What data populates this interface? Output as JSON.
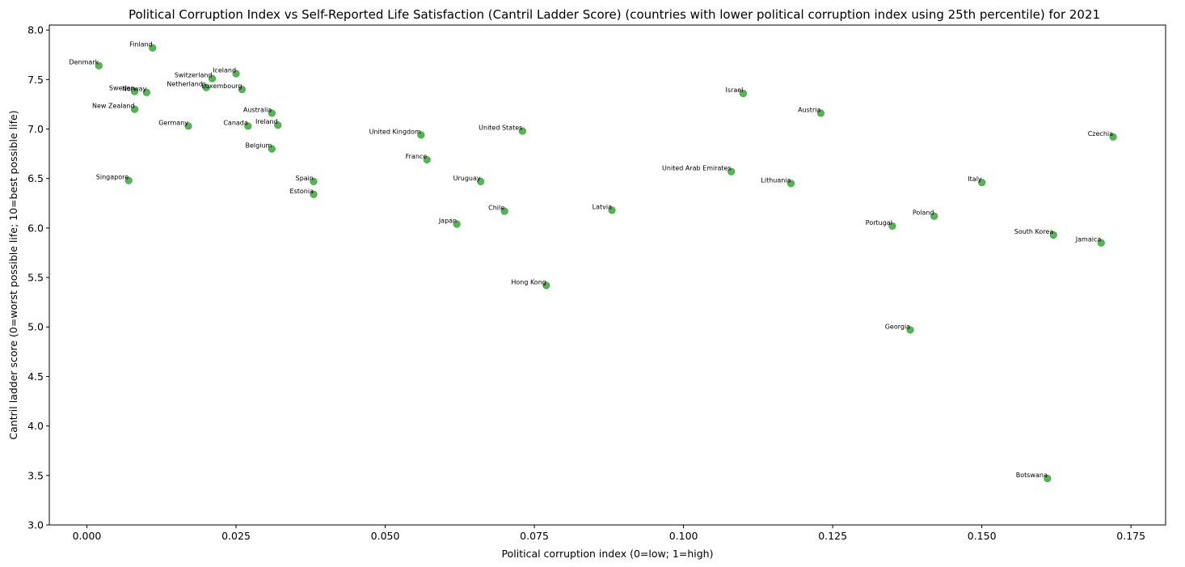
{
  "chart_data": {
    "type": "scatter",
    "title": "Political Corruption Index vs Self-Reported Life Satisfaction (Cantril Ladder Score) (countries with lower political corruption index using 25th percentile) for 2021",
    "xlabel": "Political corruption index (0=low; 1=high)",
    "ylabel": "Cantril ladder score (0=worst possible life; 10=best possible life)",
    "xlim": [
      -0.0063,
      0.1808
    ],
    "ylim": [
      3.0,
      8.05
    ],
    "xticks": [
      0.0,
      0.025,
      0.05,
      0.075,
      0.1,
      0.125,
      0.15,
      0.175
    ],
    "xtick_labels": [
      "0.000",
      "0.025",
      "0.050",
      "0.075",
      "0.100",
      "0.125",
      "0.150",
      "0.175"
    ],
    "yticks": [
      3.0,
      3.5,
      4.0,
      4.5,
      5.0,
      5.5,
      6.0,
      6.5,
      7.0,
      7.5,
      8.0
    ],
    "ytick_labels": [
      "3.0",
      "3.5",
      "4.0",
      "4.5",
      "5.0",
      "5.5",
      "6.0",
      "6.5",
      "7.0",
      "7.5",
      "8.0"
    ],
    "grid": false,
    "marker_color": "#2ca02c",
    "points": [
      {
        "label": "Denmark",
        "x": 0.002,
        "y": 7.64
      },
      {
        "label": "Finland",
        "x": 0.011,
        "y": 7.82
      },
      {
        "label": "Iceland",
        "x": 0.025,
        "y": 7.56
      },
      {
        "label": "Switzerland",
        "x": 0.021,
        "y": 7.51
      },
      {
        "label": "Netherlands",
        "x": 0.02,
        "y": 7.42
      },
      {
        "label": "Luxembourg",
        "x": 0.026,
        "y": 7.4
      },
      {
        "label": "Sweden",
        "x": 0.008,
        "y": 7.38
      },
      {
        "label": "Norway",
        "x": 0.01,
        "y": 7.37
      },
      {
        "label": "New Zealand",
        "x": 0.008,
        "y": 7.2
      },
      {
        "label": "Australia",
        "x": 0.031,
        "y": 7.16
      },
      {
        "label": "Germany",
        "x": 0.017,
        "y": 7.03
      },
      {
        "label": "Canada",
        "x": 0.027,
        "y": 7.03
      },
      {
        "label": "Ireland",
        "x": 0.032,
        "y": 7.04
      },
      {
        "label": "Belgium",
        "x": 0.031,
        "y": 6.8
      },
      {
        "label": "United Kingdom",
        "x": 0.056,
        "y": 6.94
      },
      {
        "label": "United States",
        "x": 0.073,
        "y": 6.98
      },
      {
        "label": "Singapore",
        "x": 0.007,
        "y": 6.48
      },
      {
        "label": "Spain",
        "x": 0.038,
        "y": 6.47
      },
      {
        "label": "Estonia",
        "x": 0.038,
        "y": 6.34
      },
      {
        "label": "France",
        "x": 0.057,
        "y": 6.69
      },
      {
        "label": "Uruguay",
        "x": 0.066,
        "y": 6.47
      },
      {
        "label": "Chile",
        "x": 0.07,
        "y": 6.17
      },
      {
        "label": "Japan",
        "x": 0.062,
        "y": 6.04
      },
      {
        "label": "Latvia",
        "x": 0.088,
        "y": 6.18
      },
      {
        "label": "Hong Kong",
        "x": 0.077,
        "y": 5.42
      },
      {
        "label": "Israel",
        "x": 0.11,
        "y": 7.36
      },
      {
        "label": "Austria",
        "x": 0.123,
        "y": 7.16
      },
      {
        "label": "United Arab Emirates",
        "x": 0.108,
        "y": 6.57
      },
      {
        "label": "Lithuania",
        "x": 0.118,
        "y": 6.45
      },
      {
        "label": "Portugal",
        "x": 0.135,
        "y": 6.02
      },
      {
        "label": "Poland",
        "x": 0.142,
        "y": 6.12
      },
      {
        "label": "Georgia",
        "x": 0.138,
        "y": 4.97
      },
      {
        "label": "Italy",
        "x": 0.15,
        "y": 6.46
      },
      {
        "label": "Czechia",
        "x": 0.172,
        "y": 6.92
      },
      {
        "label": "South Korea",
        "x": 0.162,
        "y": 5.93
      },
      {
        "label": "Jamaica",
        "x": 0.17,
        "y": 5.85
      },
      {
        "label": "Botswana",
        "x": 0.161,
        "y": 3.47
      }
    ]
  }
}
